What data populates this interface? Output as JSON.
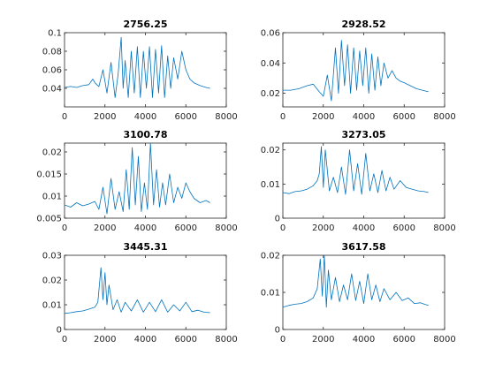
{
  "colors": {
    "line": "#0072bd",
    "axes": "#262626",
    "background": "#ffffff"
  },
  "chart_data": [
    {
      "type": "line",
      "title": "2756.25",
      "xlabel": "",
      "ylabel": "",
      "xlim": [
        0,
        8000
      ],
      "ylim": [
        0.02,
        0.1
      ],
      "xticks": [
        0,
        2000,
        4000,
        6000,
        8000
      ],
      "xtick_labels": [
        "0",
        "2000",
        "4000",
        "6000",
        "8000"
      ],
      "yticks": [
        0.04,
        0.06,
        0.08,
        0.1
      ],
      "ytick_labels": [
        "0.04",
        "0.06",
        "0.08",
        "0.1"
      ],
      "grid": false,
      "series": [
        {
          "x": [
            0,
            300,
            600,
            900,
            1200,
            1400,
            1500,
            1700,
            1900,
            2100,
            2300,
            2500,
            2650,
            2800,
            2900,
            3000,
            3150,
            3300,
            3450,
            3600,
            3750,
            3900,
            4050,
            4200,
            4350,
            4500,
            4650,
            4800,
            4950,
            5100,
            5250,
            5400,
            5600,
            5800,
            6000,
            6200,
            6400,
            6700,
            7000,
            7200
          ],
          "y": [
            0.041,
            0.042,
            0.041,
            0.043,
            0.044,
            0.05,
            0.046,
            0.042,
            0.06,
            0.035,
            0.068,
            0.03,
            0.055,
            0.095,
            0.04,
            0.07,
            0.03,
            0.08,
            0.035,
            0.085,
            0.03,
            0.08,
            0.04,
            0.085,
            0.03,
            0.082,
            0.035,
            0.086,
            0.03,
            0.075,
            0.04,
            0.073,
            0.05,
            0.08,
            0.06,
            0.05,
            0.046,
            0.043,
            0.041,
            0.04
          ]
        }
      ]
    },
    {
      "type": "line",
      "title": "2928.52",
      "xlabel": "",
      "ylabel": "",
      "xlim": [
        0,
        8000
      ],
      "ylim": [
        0.011,
        0.06
      ],
      "xticks": [
        0,
        2000,
        4000,
        6000,
        8000
      ],
      "xtick_labels": [
        "0",
        "2000",
        "4000",
        "6000",
        "8000"
      ],
      "yticks": [
        0.02,
        0.04,
        0.06
      ],
      "ytick_labels": [
        "0.02",
        "0.04",
        "0.06"
      ],
      "grid": false,
      "series": [
        {
          "x": [
            0,
            400,
            800,
            1200,
            1500,
            1800,
            2000,
            2200,
            2400,
            2600,
            2750,
            2900,
            3050,
            3200,
            3350,
            3500,
            3650,
            3800,
            3950,
            4100,
            4250,
            4400,
            4550,
            4700,
            4850,
            5000,
            5200,
            5400,
            5600,
            5800,
            6000,
            6300,
            6600,
            6900,
            7200
          ],
          "y": [
            0.022,
            0.022,
            0.023,
            0.025,
            0.026,
            0.021,
            0.018,
            0.032,
            0.015,
            0.05,
            0.02,
            0.055,
            0.025,
            0.052,
            0.02,
            0.05,
            0.022,
            0.048,
            0.025,
            0.05,
            0.02,
            0.046,
            0.022,
            0.044,
            0.025,
            0.04,
            0.03,
            0.035,
            0.03,
            0.028,
            0.027,
            0.025,
            0.023,
            0.022,
            0.021
          ]
        }
      ]
    },
    {
      "type": "line",
      "title": "3100.78",
      "xlabel": "",
      "ylabel": "",
      "xlim": [
        0,
        8000
      ],
      "ylim": [
        0.005,
        0.022
      ],
      "xticks": [
        0,
        2000,
        4000,
        6000,
        8000
      ],
      "xtick_labels": [
        "0",
        "2000",
        "4000",
        "6000",
        "8000"
      ],
      "yticks": [
        0.005,
        0.01,
        0.015,
        0.02
      ],
      "ytick_labels": [
        "0.005",
        "0.01",
        "0.015",
        "0.02"
      ],
      "grid": false,
      "series": [
        {
          "x": [
            0,
            300,
            600,
            900,
            1200,
            1500,
            1700,
            1900,
            2100,
            2300,
            2500,
            2700,
            2900,
            3050,
            3200,
            3350,
            3500,
            3650,
            3800,
            3950,
            4100,
            4250,
            4400,
            4550,
            4700,
            4850,
            5000,
            5200,
            5400,
            5600,
            5800,
            6000,
            6200,
            6400,
            6700,
            7000,
            7200
          ],
          "y": [
            0.008,
            0.0075,
            0.0085,
            0.0078,
            0.0082,
            0.0088,
            0.007,
            0.012,
            0.006,
            0.014,
            0.007,
            0.011,
            0.0065,
            0.016,
            0.007,
            0.021,
            0.008,
            0.019,
            0.0065,
            0.013,
            0.007,
            0.022,
            0.008,
            0.016,
            0.0075,
            0.013,
            0.008,
            0.015,
            0.0085,
            0.012,
            0.0095,
            0.013,
            0.011,
            0.0095,
            0.0085,
            0.009,
            0.0085
          ]
        }
      ]
    },
    {
      "type": "line",
      "title": "3273.05",
      "xlabel": "",
      "ylabel": "",
      "xlim": [
        0,
        8000
      ],
      "ylim": [
        0,
        0.022
      ],
      "xticks": [
        0,
        2000,
        4000,
        6000,
        8000
      ],
      "xtick_labels": [
        "0",
        "2000",
        "4000",
        "6000",
        "8000"
      ],
      "yticks": [
        0,
        0.01,
        0.02
      ],
      "ytick_labels": [
        "0",
        "0.01",
        "0.02"
      ],
      "grid": false,
      "series": [
        {
          "x": [
            0,
            300,
            600,
            900,
            1200,
            1500,
            1700,
            1800,
            1900,
            2000,
            2100,
            2300,
            2500,
            2700,
            2900,
            3100,
            3300,
            3500,
            3700,
            3900,
            4100,
            4300,
            4500,
            4700,
            4900,
            5100,
            5300,
            5500,
            5800,
            6100,
            6400,
            6700,
            7000,
            7200
          ],
          "y": [
            0.0075,
            0.0072,
            0.0078,
            0.008,
            0.0085,
            0.0095,
            0.011,
            0.013,
            0.021,
            0.009,
            0.02,
            0.008,
            0.012,
            0.0075,
            0.015,
            0.007,
            0.02,
            0.008,
            0.016,
            0.007,
            0.019,
            0.008,
            0.013,
            0.0075,
            0.014,
            0.008,
            0.012,
            0.0085,
            0.011,
            0.009,
            0.0085,
            0.008,
            0.0078,
            0.0075
          ]
        }
      ]
    },
    {
      "type": "line",
      "title": "3445.31",
      "xlabel": "",
      "ylabel": "",
      "xlim": [
        0,
        8000
      ],
      "ylim": [
        0,
        0.03
      ],
      "xticks": [
        0,
        2000,
        4000,
        6000,
        8000
      ],
      "xtick_labels": [
        "0",
        "2000",
        "4000",
        "6000",
        "8000"
      ],
      "yticks": [
        0,
        0.01,
        0.02,
        0.03
      ],
      "ytick_labels": [
        "0",
        "0.01",
        "0.02",
        "0.03"
      ],
      "grid": false,
      "series": [
        {
          "x": [
            0,
            300,
            600,
            900,
            1200,
            1500,
            1650,
            1800,
            1900,
            2000,
            2100,
            2200,
            2400,
            2600,
            2800,
            3000,
            3300,
            3600,
            3900,
            4200,
            4500,
            4800,
            5100,
            5400,
            5700,
            6000,
            6300,
            6600,
            6900,
            7200
          ],
          "y": [
            0.0065,
            0.0068,
            0.0072,
            0.0075,
            0.0082,
            0.009,
            0.011,
            0.025,
            0.012,
            0.023,
            0.01,
            0.018,
            0.008,
            0.012,
            0.007,
            0.011,
            0.0075,
            0.012,
            0.007,
            0.011,
            0.0072,
            0.012,
            0.007,
            0.01,
            0.0075,
            0.011,
            0.0072,
            0.0078,
            0.007,
            0.0068
          ]
        }
      ]
    },
    {
      "type": "line",
      "title": "3617.58",
      "xlabel": "",
      "ylabel": "",
      "xlim": [
        0,
        8000
      ],
      "ylim": [
        0,
        0.02
      ],
      "xticks": [
        0,
        2000,
        4000,
        6000,
        8000
      ],
      "xtick_labels": [
        "0",
        "2000",
        "4000",
        "6000",
        "8000"
      ],
      "yticks": [
        0,
        0.01,
        0.02
      ],
      "ytick_labels": [
        "0",
        "0.01",
        "0.02"
      ],
      "grid": false,
      "series": [
        {
          "x": [
            0,
            300,
            600,
            900,
            1200,
            1500,
            1700,
            1850,
            1950,
            2050,
            2150,
            2250,
            2400,
            2600,
            2800,
            3000,
            3200,
            3400,
            3600,
            3800,
            4000,
            4200,
            4400,
            4600,
            4800,
            5000,
            5300,
            5600,
            5900,
            6200,
            6500,
            6800,
            7000,
            7200
          ],
          "y": [
            0.006,
            0.0065,
            0.0068,
            0.007,
            0.0075,
            0.0085,
            0.011,
            0.019,
            0.009,
            0.02,
            0.006,
            0.016,
            0.008,
            0.014,
            0.0075,
            0.012,
            0.008,
            0.015,
            0.0078,
            0.013,
            0.007,
            0.015,
            0.008,
            0.012,
            0.0075,
            0.011,
            0.008,
            0.01,
            0.0078,
            0.0085,
            0.007,
            0.0072,
            0.0068,
            0.0065
          ]
        }
      ]
    }
  ]
}
